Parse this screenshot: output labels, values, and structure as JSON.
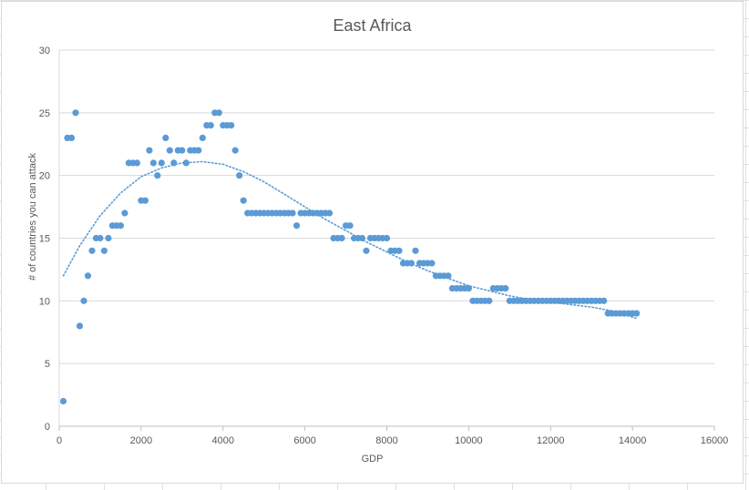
{
  "chart_data": {
    "type": "scatter",
    "title": "East Africa",
    "xlabel": "GDP",
    "ylabel": "# of countries you can attack",
    "xlim": [
      0,
      16000
    ],
    "ylim": [
      0,
      30
    ],
    "x_ticks": [
      0,
      2000,
      4000,
      6000,
      8000,
      10000,
      12000,
      14000,
      16000
    ],
    "y_ticks": [
      0,
      5,
      10,
      15,
      20,
      25,
      30
    ],
    "grid": "horizontal",
    "legend": "none",
    "colors": {
      "points": "#5b9bd5",
      "trendline": "#5b9bd5",
      "gridline": "#d9d9d9",
      "text": "#595959"
    },
    "series": [
      {
        "points": [
          [
            100,
            2
          ],
          [
            200,
            23
          ],
          [
            300,
            23
          ],
          [
            400,
            25
          ],
          [
            500,
            8
          ],
          [
            600,
            10
          ],
          [
            700,
            12
          ],
          [
            800,
            14
          ],
          [
            900,
            15
          ],
          [
            1000,
            15
          ],
          [
            1100,
            14
          ],
          [
            1200,
            15
          ],
          [
            1300,
            16
          ],
          [
            1400,
            16
          ],
          [
            1500,
            16
          ],
          [
            1600,
            17
          ],
          [
            1700,
            21
          ],
          [
            1800,
            21
          ],
          [
            1900,
            21
          ],
          [
            2000,
            18
          ],
          [
            2100,
            18
          ],
          [
            2200,
            22
          ],
          [
            2300,
            21
          ],
          [
            2400,
            20
          ],
          [
            2500,
            21
          ],
          [
            2600,
            23
          ],
          [
            2700,
            22
          ],
          [
            2800,
            21
          ],
          [
            2900,
            22
          ],
          [
            3000,
            22
          ],
          [
            3100,
            21
          ],
          [
            3200,
            22
          ],
          [
            3300,
            22
          ],
          [
            3400,
            22
          ],
          [
            3500,
            23
          ],
          [
            3600,
            24
          ],
          [
            3700,
            24
          ],
          [
            3800,
            25
          ],
          [
            3900,
            25
          ],
          [
            4000,
            24
          ],
          [
            4100,
            24
          ],
          [
            4200,
            24
          ],
          [
            4300,
            22
          ],
          [
            4400,
            20
          ],
          [
            4500,
            18
          ],
          [
            4600,
            17
          ],
          [
            4700,
            17
          ],
          [
            4800,
            17
          ],
          [
            4900,
            17
          ],
          [
            5000,
            17
          ],
          [
            5100,
            17
          ],
          [
            5200,
            17
          ],
          [
            5300,
            17
          ],
          [
            5400,
            17
          ],
          [
            5500,
            17
          ],
          [
            5600,
            17
          ],
          [
            5700,
            17
          ],
          [
            5800,
            16
          ],
          [
            5900,
            17
          ],
          [
            6000,
            17
          ],
          [
            6100,
            17
          ],
          [
            6200,
            17
          ],
          [
            6300,
            17
          ],
          [
            6400,
            17
          ],
          [
            6500,
            17
          ],
          [
            6600,
            17
          ],
          [
            6700,
            15
          ],
          [
            6800,
            15
          ],
          [
            6900,
            15
          ],
          [
            7000,
            16
          ],
          [
            7100,
            16
          ],
          [
            7200,
            15
          ],
          [
            7300,
            15
          ],
          [
            7400,
            15
          ],
          [
            7500,
            14
          ],
          [
            7600,
            15
          ],
          [
            7700,
            15
          ],
          [
            7800,
            15
          ],
          [
            7900,
            15
          ],
          [
            8000,
            15
          ],
          [
            8100,
            14
          ],
          [
            8200,
            14
          ],
          [
            8300,
            14
          ],
          [
            8400,
            13
          ],
          [
            8500,
            13
          ],
          [
            8600,
            13
          ],
          [
            8700,
            14
          ],
          [
            8800,
            13
          ],
          [
            8900,
            13
          ],
          [
            9000,
            13
          ],
          [
            9100,
            13
          ],
          [
            9200,
            12
          ],
          [
            9300,
            12
          ],
          [
            9400,
            12
          ],
          [
            9500,
            12
          ],
          [
            9600,
            11
          ],
          [
            9700,
            11
          ],
          [
            9800,
            11
          ],
          [
            9900,
            11
          ],
          [
            10000,
            11
          ],
          [
            10100,
            10
          ],
          [
            10200,
            10
          ],
          [
            10300,
            10
          ],
          [
            10400,
            10
          ],
          [
            10500,
            10
          ],
          [
            10600,
            11
          ],
          [
            10700,
            11
          ],
          [
            10800,
            11
          ],
          [
            10900,
            11
          ],
          [
            11000,
            10
          ],
          [
            11100,
            10
          ],
          [
            11200,
            10
          ],
          [
            11300,
            10
          ],
          [
            11400,
            10
          ],
          [
            11500,
            10
          ],
          [
            11600,
            10
          ],
          [
            11700,
            10
          ],
          [
            11800,
            10
          ],
          [
            11900,
            10
          ],
          [
            12000,
            10
          ],
          [
            12100,
            10
          ],
          [
            12200,
            10
          ],
          [
            12300,
            10
          ],
          [
            12400,
            10
          ],
          [
            12500,
            10
          ],
          [
            12600,
            10
          ],
          [
            12700,
            10
          ],
          [
            12800,
            10
          ],
          [
            12900,
            10
          ],
          [
            13000,
            10
          ],
          [
            13100,
            10
          ],
          [
            13200,
            10
          ],
          [
            13300,
            10
          ],
          [
            13400,
            9
          ],
          [
            13500,
            9
          ],
          [
            13600,
            9
          ],
          [
            13700,
            9
          ],
          [
            13800,
            9
          ],
          [
            13900,
            9
          ],
          [
            14000,
            9
          ],
          [
            14100,
            9
          ]
        ]
      }
    ],
    "trendline": {
      "type": "polynomial",
      "style": "dotted",
      "x": [
        100,
        500,
        1000,
        1500,
        2000,
        2500,
        3000,
        3500,
        4000,
        4500,
        5000,
        5500,
        6000,
        6500,
        7000,
        7500,
        8000,
        8500,
        9000,
        9500,
        10000,
        10500,
        11000,
        11500,
        12000,
        12500,
        13000,
        13500,
        14100
      ],
      "y": [
        12,
        14.4,
        16.8,
        18.6,
        19.9,
        20.6,
        21,
        21.1,
        20.9,
        20.3,
        19.5,
        18.5,
        17.5,
        16.5,
        15.6,
        14.7,
        13.9,
        13.1,
        12.4,
        11.8,
        11.2,
        10.8,
        10.4,
        10.1,
        9.9,
        9.7,
        9.5,
        9.2,
        8.6
      ]
    }
  }
}
